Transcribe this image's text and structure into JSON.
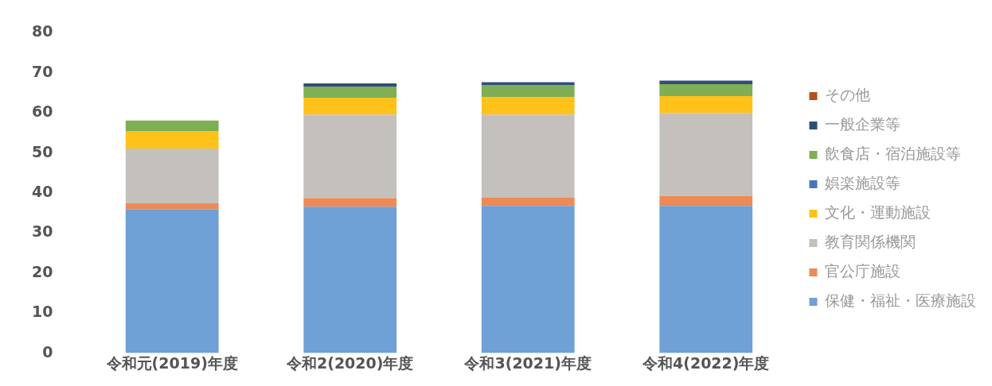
{
  "chart_data": {
    "type": "bar",
    "stacked": true,
    "categories": [
      "令和元(2019)年度",
      "令和2(2020)年度",
      "令和3(2021)年度",
      "令和4(2022)年度"
    ],
    "series": [
      {
        "name": "保健・福祉・医療施設",
        "color": "#6fa0d6",
        "values": [
          36.0,
          36.6,
          36.8,
          36.8
        ]
      },
      {
        "name": "官公庁施設",
        "color": "#ee8a55",
        "values": [
          1.4,
          2.1,
          2.1,
          2.4
        ]
      },
      {
        "name": "教育関係機関",
        "color": "#c4c0bc",
        "values": [
          13.7,
          20.9,
          20.7,
          20.8
        ]
      },
      {
        "name": "文化・運動施設",
        "color": "#ffc21a",
        "values": [
          4.4,
          4.2,
          4.4,
          4.2
        ]
      },
      {
        "name": "娯楽施設等",
        "color": "#4a74b8",
        "values": [
          0,
          0,
          0,
          0
        ]
      },
      {
        "name": "飲食店・宿泊施設等",
        "color": "#7fae55",
        "values": [
          2.6,
          2.8,
          3.0,
          3.0
        ]
      },
      {
        "name": "一般企業等",
        "color": "#2f4f7a",
        "values": [
          0,
          0.8,
          0.7,
          0.9
        ]
      },
      {
        "name": "その他",
        "color": "#b0521a",
        "values": [
          0,
          0,
          0,
          0
        ]
      }
    ],
    "ylim": [
      0,
      80
    ],
    "yticks": [
      0,
      10,
      20,
      30,
      40,
      50,
      60,
      70,
      80
    ],
    "grid": false,
    "legend": "right"
  }
}
